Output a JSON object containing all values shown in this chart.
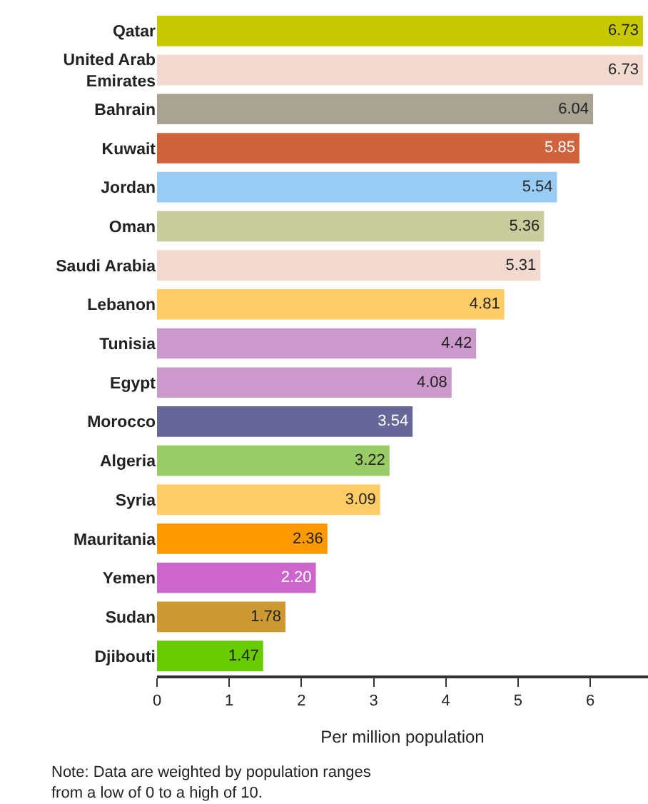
{
  "chart_data": {
    "type": "bar",
    "orientation": "horizontal",
    "xlabel": "Per million population",
    "categories": [
      "Qatar",
      "United Arab Emirates",
      "Bahrain",
      "Kuwait",
      "Jordan",
      "Oman",
      "Saudi Arabia",
      "Lebanon",
      "Tunisia",
      "Egypt",
      "Morocco",
      "Algeria",
      "Syria",
      "Mauritania",
      "Yemen",
      "Sudan",
      "Djibouti"
    ],
    "values": [
      6.73,
      6.73,
      6.04,
      5.85,
      5.54,
      5.36,
      5.31,
      4.81,
      4.42,
      4.08,
      3.54,
      3.22,
      3.09,
      2.36,
      2.2,
      1.78,
      1.47
    ],
    "value_labels": [
      "6.73",
      "6.73",
      "6.04",
      "5.85",
      "5.54",
      "5.36",
      "5.31",
      "4.81",
      "4.42",
      "4.08",
      "3.54",
      "3.22",
      "3.09",
      "2.36",
      "2.20",
      "1.78",
      "1.47"
    ],
    "colors": [
      "#c8c800",
      "#f2d9cf",
      "#a8a393",
      "#d0623c",
      "#99ccf5",
      "#c9cc9b",
      "#f2d9cf",
      "#ffcc66",
      "#cc99cc",
      "#cc99cc",
      "#666699",
      "#99cc66",
      "#ffcc66",
      "#ff9900",
      "#cc66cc",
      "#cc9933",
      "#66cc00"
    ],
    "xlim": [
      0,
      6.8
    ],
    "xticks": [
      0,
      1,
      2,
      3,
      4,
      5,
      6
    ],
    "grid": false,
    "annotations": [
      "Note: Data are weighted by population ranges from a low of 0 to a high of 10."
    ]
  }
}
